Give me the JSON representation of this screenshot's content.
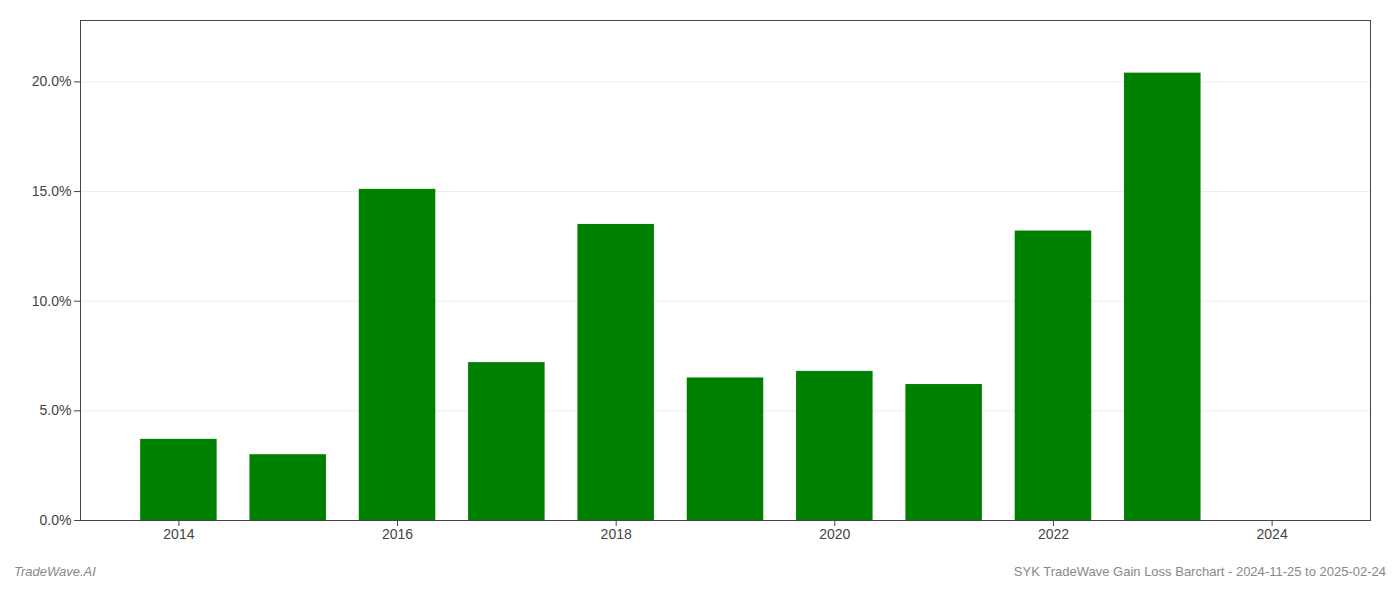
{
  "chart_data": {
    "type": "bar",
    "x": [
      2014,
      2015,
      2016,
      2017,
      2018,
      2019,
      2020,
      2021,
      2022,
      2023
    ],
    "values": [
      0.037,
      0.03,
      0.151,
      0.072,
      0.135,
      0.065,
      0.068,
      0.062,
      0.132,
      0.204
    ],
    "color": "#008000",
    "xlim": [
      2013.1,
      2024.9
    ],
    "xticks": [
      2014,
      2016,
      2018,
      2020,
      2022,
      2024
    ],
    "ylim": [
      0,
      0.228
    ],
    "yticks": [
      {
        "value": 0.0,
        "label": "0.0%"
      },
      {
        "value": 0.05,
        "label": "5.0%"
      },
      {
        "value": 0.1,
        "label": "10.0%"
      },
      {
        "value": 0.15,
        "label": "15.0%"
      },
      {
        "value": 0.2,
        "label": "20.0%"
      }
    ],
    "grid": true,
    "annotations": [
      "TradeWave.AI",
      "SYK TradeWave Gain Loss Barchart - 2024-11-25 to 2025-02-24"
    ]
  }
}
